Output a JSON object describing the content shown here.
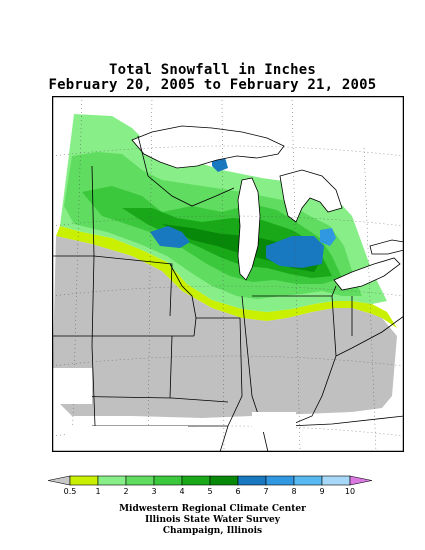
{
  "title_line1": "Total Snowfall in Inches",
  "title_line2": "February 20, 2005 to February 21, 2005",
  "legend": {
    "labels": [
      "0.5",
      "1",
      "2",
      "3",
      "4",
      "5",
      "6",
      "7",
      "8",
      "9",
      "10"
    ],
    "colors": [
      "#c8c8c8",
      "#c8f000",
      "#88ee88",
      "#60dc60",
      "#3cc83c",
      "#18a818",
      "#088808",
      "#1878c0",
      "#3098e0",
      "#58b8f0",
      "#a8d8f8",
      "#d878e0"
    ]
  },
  "credits": [
    "Midwestern Regional Climate Center",
    "Illinois State Water Survey",
    "Champaign, Illinois"
  ]
}
